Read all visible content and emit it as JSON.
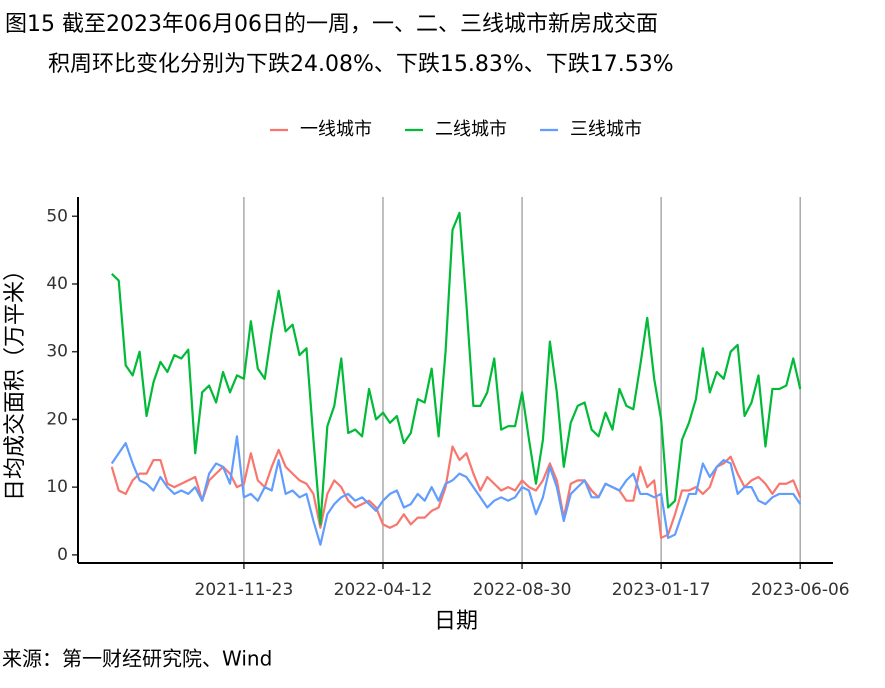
{
  "chart_data": {
    "type": "line",
    "title_lines": [
      "图15  截至2023年06月06日的一周，一、二、三线城市新房成交面",
      "积周环比变化分别为下跌24.08%、下跌15.83%、下跌17.53%"
    ],
    "x_label": "日期",
    "y_label": "日均成交面积（万平米）",
    "source": "来源：第一财经研究院、Wind",
    "x": [
      "2021-07-13",
      "2021-07-20",
      "2021-07-27",
      "2021-08-03",
      "2021-08-10",
      "2021-08-17",
      "2021-08-24",
      "2021-08-31",
      "2021-09-07",
      "2021-09-14",
      "2021-09-21",
      "2021-09-28",
      "2021-10-05",
      "2021-10-12",
      "2021-10-19",
      "2021-10-26",
      "2021-11-02",
      "2021-11-09",
      "2021-11-16",
      "2021-11-23",
      "2021-11-30",
      "2021-12-07",
      "2021-12-14",
      "2021-12-21",
      "2021-12-28",
      "2022-01-04",
      "2022-01-11",
      "2022-01-18",
      "2022-01-25",
      "2022-02-01",
      "2022-02-08",
      "2022-02-15",
      "2022-02-22",
      "2022-03-01",
      "2022-03-08",
      "2022-03-15",
      "2022-03-22",
      "2022-03-29",
      "2022-04-05",
      "2022-04-12",
      "2022-04-19",
      "2022-04-26",
      "2022-05-03",
      "2022-05-10",
      "2022-05-17",
      "2022-05-24",
      "2022-05-31",
      "2022-06-07",
      "2022-06-14",
      "2022-06-21",
      "2022-06-28",
      "2022-07-05",
      "2022-07-12",
      "2022-07-19",
      "2022-07-26",
      "2022-08-02",
      "2022-08-09",
      "2022-08-16",
      "2022-08-23",
      "2022-08-30",
      "2022-09-06",
      "2022-09-13",
      "2022-09-20",
      "2022-09-27",
      "2022-10-04",
      "2022-10-11",
      "2022-10-18",
      "2022-10-25",
      "2022-11-01",
      "2022-11-08",
      "2022-11-15",
      "2022-11-22",
      "2022-11-29",
      "2022-12-06",
      "2022-12-13",
      "2022-12-20",
      "2022-12-27",
      "2023-01-03",
      "2023-01-10",
      "2023-01-17",
      "2023-01-24",
      "2023-01-31",
      "2023-02-07",
      "2023-02-14",
      "2023-02-21",
      "2023-02-28",
      "2023-03-07",
      "2023-03-14",
      "2023-03-21",
      "2023-03-28",
      "2023-04-04",
      "2023-04-11",
      "2023-04-18",
      "2023-04-25",
      "2023-05-02",
      "2023-05-09",
      "2023-05-16",
      "2023-05-23",
      "2023-05-30",
      "2023-06-06"
    ],
    "series": [
      {
        "name": "一线城市",
        "color": "#F8766D",
        "values": [
          13,
          9.5,
          9,
          11,
          12,
          12,
          14,
          14,
          10.5,
          10,
          10.5,
          11,
          11.5,
          8,
          11,
          12,
          13,
          12,
          10,
          10.5,
          15,
          11,
          10,
          13,
          15.5,
          13,
          12,
          11,
          10.5,
          9,
          4,
          9,
          11,
          10,
          8,
          7,
          7.5,
          8,
          7,
          4.5,
          4,
          4.5,
          6,
          4.5,
          5.5,
          5.5,
          6.5,
          7,
          10,
          16,
          14,
          15,
          12,
          9.5,
          11.5,
          10.5,
          9.5,
          10,
          9.5,
          11,
          10,
          9.5,
          11,
          13.5,
          11,
          5.5,
          10.5,
          11,
          11,
          9.5,
          8.5,
          10.5,
          10,
          9.5,
          8,
          8,
          13,
          10,
          11,
          2.5,
          3,
          6,
          9.5,
          9.5,
          10,
          9,
          10,
          13,
          13.5,
          14.5,
          12,
          10,
          11,
          11.5,
          10.5,
          9,
          10.5,
          10.5,
          11,
          8.5
        ]
      },
      {
        "name": "二线城市",
        "color": "#00BA38",
        "values": [
          41.5,
          40.5,
          28,
          26.5,
          30,
          20.5,
          25.5,
          28.5,
          27,
          29.5,
          29,
          30.3,
          15,
          24,
          25,
          22.5,
          27,
          24,
          26.5,
          26,
          34.5,
          27.5,
          26,
          33,
          39,
          33,
          34,
          29.5,
          30.5,
          17,
          4.5,
          19,
          22,
          29,
          18,
          18.5,
          17.5,
          24.5,
          20,
          21,
          19.5,
          20.5,
          16.5,
          18,
          23,
          22.5,
          27.5,
          17.5,
          30,
          48,
          50.5,
          37,
          22,
          22,
          24,
          29,
          18.5,
          19,
          19,
          24,
          17,
          10.5,
          17,
          31.5,
          24,
          13,
          19.5,
          22,
          22.5,
          18.5,
          17.5,
          21,
          18.5,
          24.5,
          22,
          21.5,
          28,
          35,
          26,
          20,
          7,
          8,
          17,
          19.5,
          23,
          30.5,
          24,
          27,
          26,
          30,
          31,
          20.5,
          22.5,
          26.5,
          16,
          24.5,
          24.5,
          25,
          29,
          24.5
        ]
      },
      {
        "name": "三线城市",
        "color": "#619CFF",
        "values": [
          13.5,
          15,
          16.5,
          13.5,
          11,
          10.5,
          9.5,
          11.5,
          10,
          9,
          9.5,
          9,
          10,
          8,
          12,
          13.5,
          13,
          10.5,
          17.5,
          8.5,
          9,
          8,
          10,
          9.5,
          14,
          9,
          9.5,
          8.5,
          9,
          5,
          1.5,
          6,
          7.5,
          8.5,
          9,
          8,
          8.5,
          7.5,
          6.5,
          8,
          9,
          9.5,
          7,
          7.5,
          9,
          8,
          10,
          8,
          10.5,
          11,
          12,
          11.5,
          10,
          8.5,
          7,
          8,
          8.5,
          8,
          8.5,
          10,
          9.5,
          6,
          8.5,
          13,
          10,
          5,
          9,
          10,
          11,
          8.5,
          8.5,
          10.5,
          10,
          9.5,
          11,
          12,
          9,
          9,
          8.5,
          9,
          2.5,
          3,
          6,
          9,
          9,
          13.5,
          11.5,
          13,
          14,
          13.5,
          9,
          10,
          10,
          8,
          7.5,
          8.5,
          9,
          9,
          9,
          7.5
        ]
      }
    ],
    "xlim": [
      "2021-06-09",
      "2023-07-09"
    ],
    "xticks": [
      "2021-11-23",
      "2022-04-12",
      "2022-08-30",
      "2023-01-17",
      "2023-06-06"
    ],
    "ylim": [
      -1.2,
      52.4
    ],
    "yticks": [
      0,
      10,
      20,
      30,
      40,
      50
    ],
    "grid": "x",
    "legend": "top"
  }
}
